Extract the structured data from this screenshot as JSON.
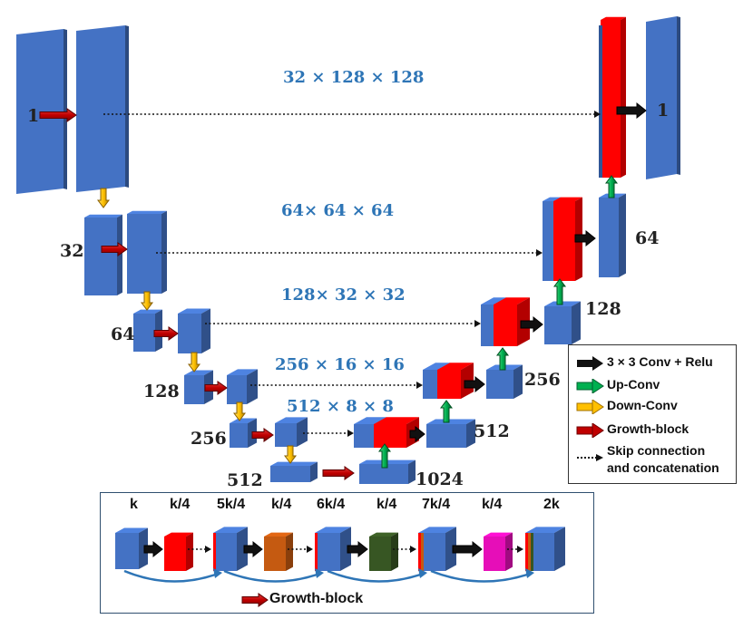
{
  "dimension_labels": {
    "level1": "32 × 128 × 128",
    "level2": "64× 64 × 64",
    "level3": "128× 32 × 32",
    "level4": "256 × 16 × 16",
    "level5": "512 × 8 × 8"
  },
  "encoder_channels": {
    "input": "1",
    "l2": "32",
    "l3": "64",
    "l4": "128",
    "l5": "256",
    "bottom": "512"
  },
  "decoder_channels": {
    "output": "1",
    "l2": "64",
    "l3": "128",
    "l4": "256",
    "l5": "512",
    "bottleneck": "1024"
  },
  "legend": {
    "conv": "3 × 3 Conv + Relu",
    "upconv": "Up-Conv",
    "downconv": "Down-Conv",
    "growth": "Growth-block",
    "skip_line1": "Skip connection",
    "skip_line2": "and concatenation"
  },
  "growth_block": {
    "labels": [
      "k",
      "k/4",
      "5k/4",
      "k/4",
      "6k/4",
      "k/4",
      "7k/4",
      "k/4",
      "2k"
    ],
    "caption": "Growth-block"
  },
  "colors": {
    "block_blue": "#4472C4",
    "block_blue_dark": "#2F5597",
    "red": "#FF0000",
    "orange": "#C55A11",
    "green": "#375623",
    "magenta": "#E60EB8",
    "dim_text": "#2E75B6",
    "down_arrow": "#FFC000",
    "up_arrow": "#00B050",
    "growth_arrow": "#C00000"
  }
}
